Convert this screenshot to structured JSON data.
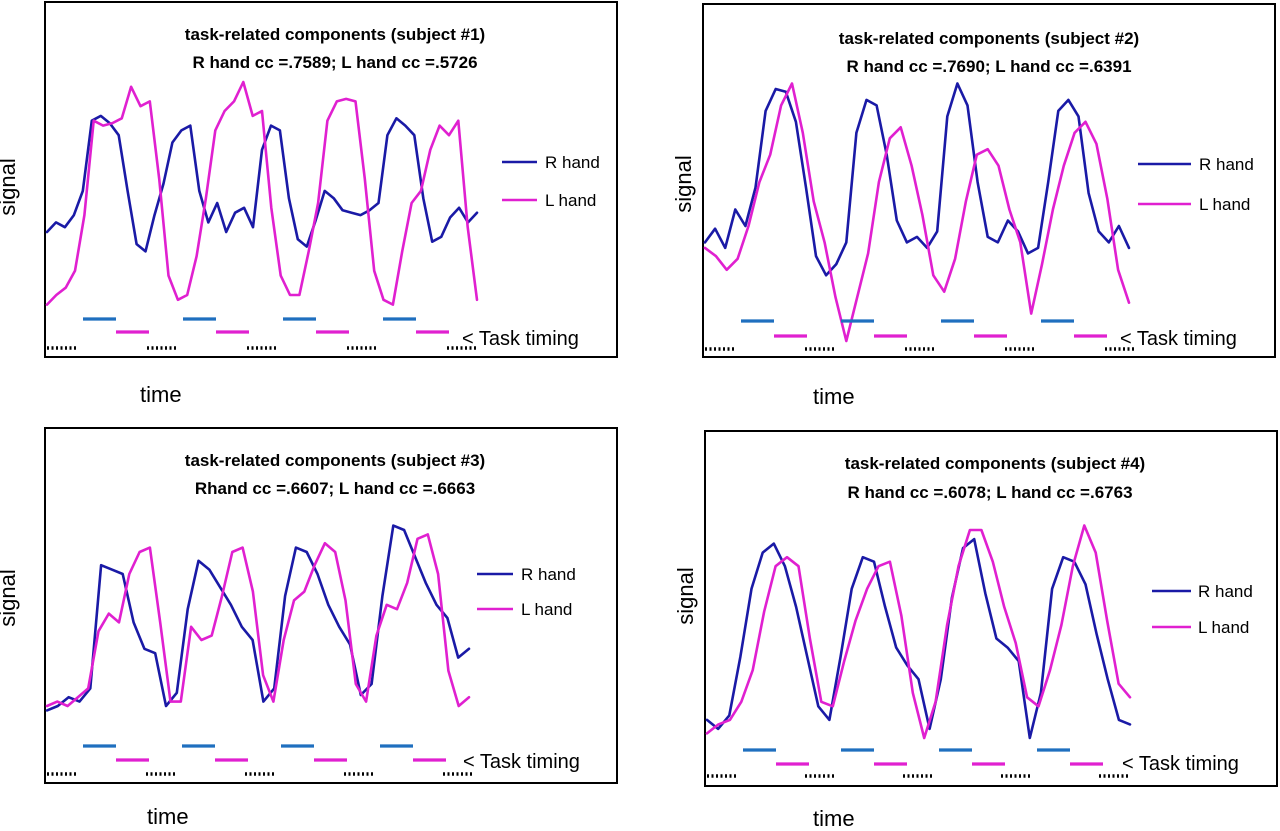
{
  "colors": {
    "r_hand": "#1a1aa6",
    "l_hand": "#e020d0",
    "task_blue": "#1f6fbf",
    "frame": "#000000"
  },
  "chart_data": [
    {
      "type": "line",
      "title": "task-related components (subject #1)",
      "subtitle": "R hand cc =.7589; L hand cc =.5726",
      "xlabel": "time",
      "ylabel": "signal",
      "grid": false,
      "legend_position": "right",
      "timing_label": "< Task timing",
      "series": [
        {
          "name": "R hand",
          "color": "#1a1aa6",
          "values": [
            0.38,
            0.42,
            0.4,
            0.45,
            0.55,
            0.84,
            0.86,
            0.83,
            0.78,
            0.55,
            0.33,
            0.3,
            0.45,
            0.58,
            0.75,
            0.8,
            0.82,
            0.55,
            0.42,
            0.5,
            0.38,
            0.46,
            0.48,
            0.4,
            0.72,
            0.82,
            0.8,
            0.52,
            0.35,
            0.32,
            0.43,
            0.55,
            0.52,
            0.47,
            0.46,
            0.45,
            0.47,
            0.5,
            0.78,
            0.85,
            0.82,
            0.78,
            0.52,
            0.34,
            0.36,
            0.44,
            0.48,
            0.42,
            0.46
          ]
        },
        {
          "name": "L hand",
          "color": "#e020d0",
          "values": [
            0.08,
            0.12,
            0.15,
            0.22,
            0.45,
            0.84,
            0.82,
            0.83,
            0.85,
            0.98,
            0.9,
            0.92,
            0.6,
            0.2,
            0.1,
            0.12,
            0.28,
            0.52,
            0.8,
            0.88,
            0.92,
            1.0,
            0.86,
            0.88,
            0.48,
            0.2,
            0.12,
            0.12,
            0.3,
            0.5,
            0.84,
            0.92,
            0.93,
            0.92,
            0.6,
            0.22,
            0.1,
            0.08,
            0.3,
            0.5,
            0.55,
            0.72,
            0.82,
            0.78,
            0.84,
            0.4,
            0.1
          ]
        },
        {
          "name": "Task timing (R)",
          "color": "#1f6fbf",
          "values": []
        }
      ]
    },
    {
      "type": "line",
      "title": "task-related components (subject #2)",
      "subtitle": "R hand cc =.7690; L hand cc =.6391",
      "xlabel": "time",
      "ylabel": "signal",
      "grid": false,
      "legend_position": "right",
      "timing_label": "< Task timing",
      "series": [
        {
          "name": "R hand",
          "color": "#1a1aa6",
          "values": [
            0.4,
            0.45,
            0.38,
            0.52,
            0.46,
            0.6,
            0.88,
            0.96,
            0.95,
            0.84,
            0.6,
            0.35,
            0.28,
            0.32,
            0.4,
            0.8,
            0.92,
            0.9,
            0.72,
            0.48,
            0.4,
            0.42,
            0.38,
            0.44,
            0.86,
            0.98,
            0.9,
            0.62,
            0.42,
            0.4,
            0.48,
            0.44,
            0.36,
            0.38,
            0.62,
            0.88,
            0.92,
            0.86,
            0.58,
            0.44,
            0.4,
            0.46,
            0.38
          ]
        },
        {
          "name": "L hand",
          "color": "#e020d0",
          "values": [
            0.38,
            0.35,
            0.3,
            0.34,
            0.46,
            0.62,
            0.72,
            0.9,
            0.98,
            0.8,
            0.55,
            0.4,
            0.2,
            0.04,
            0.2,
            0.36,
            0.62,
            0.78,
            0.82,
            0.68,
            0.5,
            0.28,
            0.22,
            0.34,
            0.55,
            0.72,
            0.74,
            0.68,
            0.52,
            0.4,
            0.14,
            0.32,
            0.52,
            0.68,
            0.8,
            0.84,
            0.76,
            0.56,
            0.3,
            0.18
          ]
        }
      ]
    },
    {
      "type": "line",
      "title": "task-related components (subject #3)",
      "subtitle": "Rhand cc =.6607; L hand cc =.6663",
      "xlabel": "time",
      "ylabel": "signal",
      "grid": false,
      "legend_position": "right",
      "timing_label": "< Task timing",
      "series": [
        {
          "name": "R hand",
          "color": "#1a1aa6",
          "values": [
            0.08,
            0.1,
            0.14,
            0.12,
            0.18,
            0.74,
            0.72,
            0.7,
            0.48,
            0.36,
            0.34,
            0.1,
            0.16,
            0.54,
            0.76,
            0.72,
            0.64,
            0.56,
            0.46,
            0.4,
            0.12,
            0.18,
            0.6,
            0.82,
            0.8,
            0.7,
            0.56,
            0.46,
            0.38,
            0.15,
            0.2,
            0.6,
            0.92,
            0.9,
            0.78,
            0.66,
            0.56,
            0.5,
            0.32,
            0.36
          ]
        },
        {
          "name": "L hand",
          "color": "#e020d0",
          "values": [
            0.1,
            0.12,
            0.1,
            0.14,
            0.18,
            0.44,
            0.52,
            0.48,
            0.7,
            0.8,
            0.82,
            0.48,
            0.12,
            0.12,
            0.46,
            0.4,
            0.42,
            0.6,
            0.8,
            0.82,
            0.62,
            0.24,
            0.12,
            0.4,
            0.58,
            0.62,
            0.74,
            0.84,
            0.8,
            0.58,
            0.2,
            0.12,
            0.42,
            0.56,
            0.54,
            0.66,
            0.86,
            0.88,
            0.7,
            0.26,
            0.1,
            0.14
          ]
        }
      ]
    },
    {
      "type": "line",
      "title": "task-related components (subject #4)",
      "subtitle": "R hand cc =.6078; L hand cc =.6763",
      "xlabel": "time",
      "ylabel": "signal",
      "grid": false,
      "legend_position": "right",
      "timing_label": "< Task timing",
      "series": [
        {
          "name": "R hand",
          "color": "#1a1aa6",
          "values": [
            0.12,
            0.08,
            0.14,
            0.4,
            0.7,
            0.86,
            0.9,
            0.8,
            0.62,
            0.4,
            0.18,
            0.12,
            0.4,
            0.7,
            0.84,
            0.82,
            0.62,
            0.44,
            0.36,
            0.3,
            0.08,
            0.3,
            0.66,
            0.88,
            0.92,
            0.68,
            0.48,
            0.44,
            0.38,
            0.04,
            0.24,
            0.7,
            0.84,
            0.82,
            0.72,
            0.5,
            0.3,
            0.12,
            0.1
          ]
        },
        {
          "name": "L hand",
          "color": "#e020d0",
          "values": [
            0.06,
            0.1,
            0.12,
            0.2,
            0.34,
            0.6,
            0.8,
            0.84,
            0.8,
            0.48,
            0.2,
            0.18,
            0.38,
            0.56,
            0.7,
            0.8,
            0.82,
            0.58,
            0.24,
            0.04,
            0.2,
            0.54,
            0.8,
            0.96,
            0.96,
            0.82,
            0.62,
            0.46,
            0.22,
            0.18,
            0.34,
            0.54,
            0.8,
            0.98,
            0.86,
            0.56,
            0.28,
            0.22
          ]
        }
      ]
    }
  ]
}
